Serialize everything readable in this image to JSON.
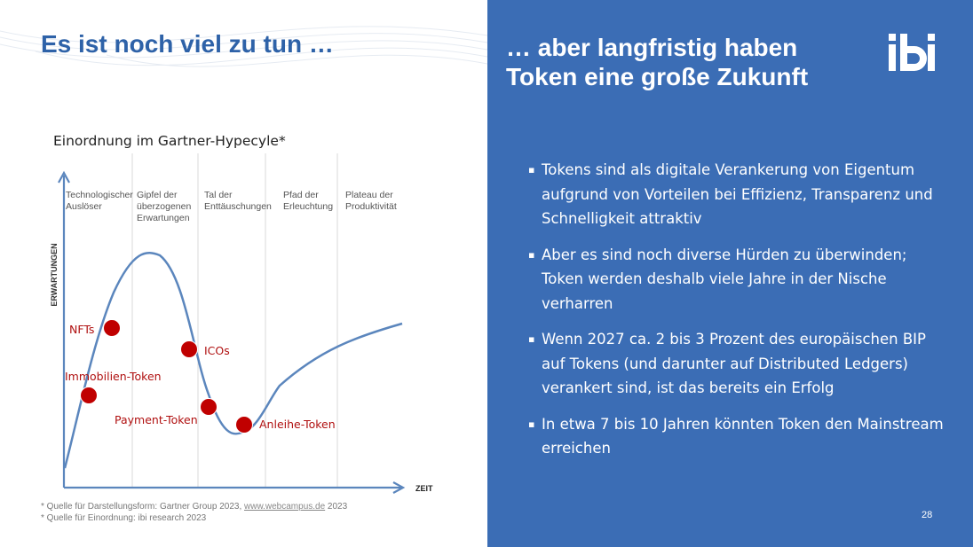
{
  "left_title": "Es ist noch viel zu tun …",
  "right_title": [
    "… aber langfristig haben",
    "Token eine große Zukunft"
  ],
  "logo_text": "ibi",
  "bullets": [
    "Tokens sind als digitale Verankerung von Eigentum aufgrund von Vorteilen bei Effizienz, Transparenz und Schnelligkeit attraktiv",
    "Aber es sind noch diverse Hürden zu überwinden; Token werden deshalb viele Jahre in der Nische verharren",
    "Wenn 2027 ca. 2 bis 3 Prozent des europäischen BIP auf Tokens (und darunter auf Distributed Ledgers) verankert sind, ist das bereits ein Erfolg",
    "In etwa 7 bis 10 Jahren könnten Token den Mainstream erreichen"
  ],
  "bullet_marker": "▪",
  "page_number": "28",
  "diagram": {
    "title": "Einordnung im Gartner-Hypecyle*",
    "y_axis_label": "ERWARTUNGEN",
    "x_axis_label": "ZEIT",
    "phases": [
      [
        "Technologischer",
        "Auslöser"
      ],
      [
        "Gipfel der",
        "überzogenen",
        "Erwartungen"
      ],
      [
        "Tal der",
        "Enttäuschungen"
      ],
      [
        "Pfad der",
        "Erleuchtung"
      ],
      [
        "Plateau der",
        "Produktivität"
      ]
    ],
    "markers": [
      "NFTs",
      "ICOs",
      "Immobilien-Token",
      "Payment-Token",
      "Anleihe-Token"
    ],
    "colors": {
      "curve": "#5b86bd",
      "marker": "#c00000",
      "marker_label": "#b01010",
      "phase_divider": "#d9d9d9"
    }
  },
  "sources": {
    "line1_prefix": "* Quelle für Darstellungsform: Gartner Group 2023,",
    "line1_link": "www.webcampus.de",
    "line1_suffix": " 2023",
    "line2": "* Quelle für Einordnung: ibi research 2023"
  }
}
